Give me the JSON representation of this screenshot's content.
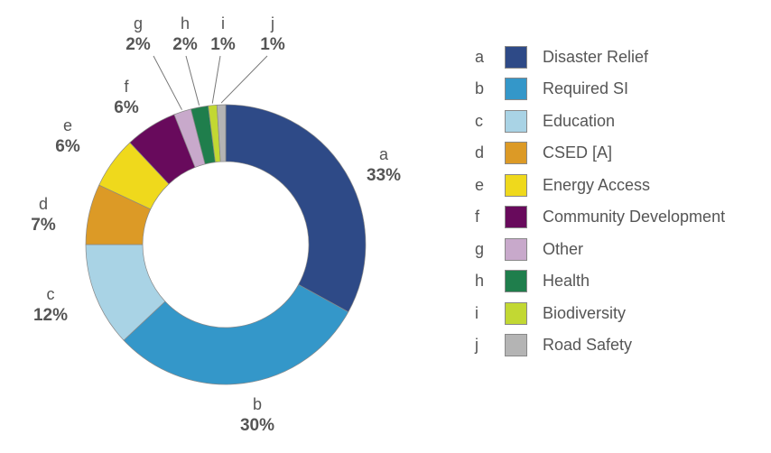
{
  "chart_data": {
    "type": "pie",
    "variant": "donut",
    "title": "",
    "slices": [
      {
        "key": "a",
        "label": "Disaster Relief",
        "value": 33,
        "pct": "33%",
        "color": "#2e4a87"
      },
      {
        "key": "b",
        "label": "Required SI",
        "value": 30,
        "pct": "30%",
        "color": "#3497c9"
      },
      {
        "key": "c",
        "label": "Education",
        "value": 12,
        "pct": "12%",
        "color": "#a9d3e5"
      },
      {
        "key": "d",
        "label": "CSED [A]",
        "value": 7,
        "pct": "7%",
        "color": "#dc9a26"
      },
      {
        "key": "e",
        "label": "Energy Access",
        "value": 6,
        "pct": "6%",
        "color": "#efd91c"
      },
      {
        "key": "f",
        "label": "Community Development",
        "value": 6,
        "pct": "6%",
        "color": "#680a5c"
      },
      {
        "key": "g",
        "label": "Other",
        "value": 2,
        "pct": "2%",
        "color": "#c8a9cb"
      },
      {
        "key": "h",
        "label": "Health",
        "value": 2,
        "pct": "2%",
        "color": "#1f7e4c"
      },
      {
        "key": "i",
        "label": "Biodiversity",
        "value": 1,
        "pct": "1%",
        "color": "#c2d833"
      },
      {
        "key": "j",
        "label": "Road Safety",
        "value": 1,
        "pct": "1%",
        "color": "#b4b4b4"
      }
    ],
    "legend_position": "right"
  }
}
